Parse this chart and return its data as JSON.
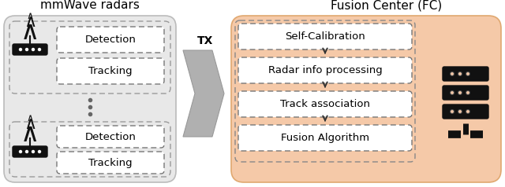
{
  "title_left": "mmWave radars",
  "title_right": "Fusion Center (FC)",
  "left_bg_color": "#e8e8e8",
  "right_bg_color": "#f5c9a8",
  "box_fill": "#ffffff",
  "arrow_color": "#444444",
  "tx_label": "TX",
  "radar_boxes": [
    "Detection",
    "Tracking"
  ],
  "fc_boxes": [
    "Self-Calibration",
    "Radar info processing",
    "Track association",
    "Fusion Algorithm"
  ],
  "font_size_title": 11,
  "font_size_box": 9.5,
  "font_size_tx": 10,
  "fig_width": 6.4,
  "fig_height": 2.38
}
